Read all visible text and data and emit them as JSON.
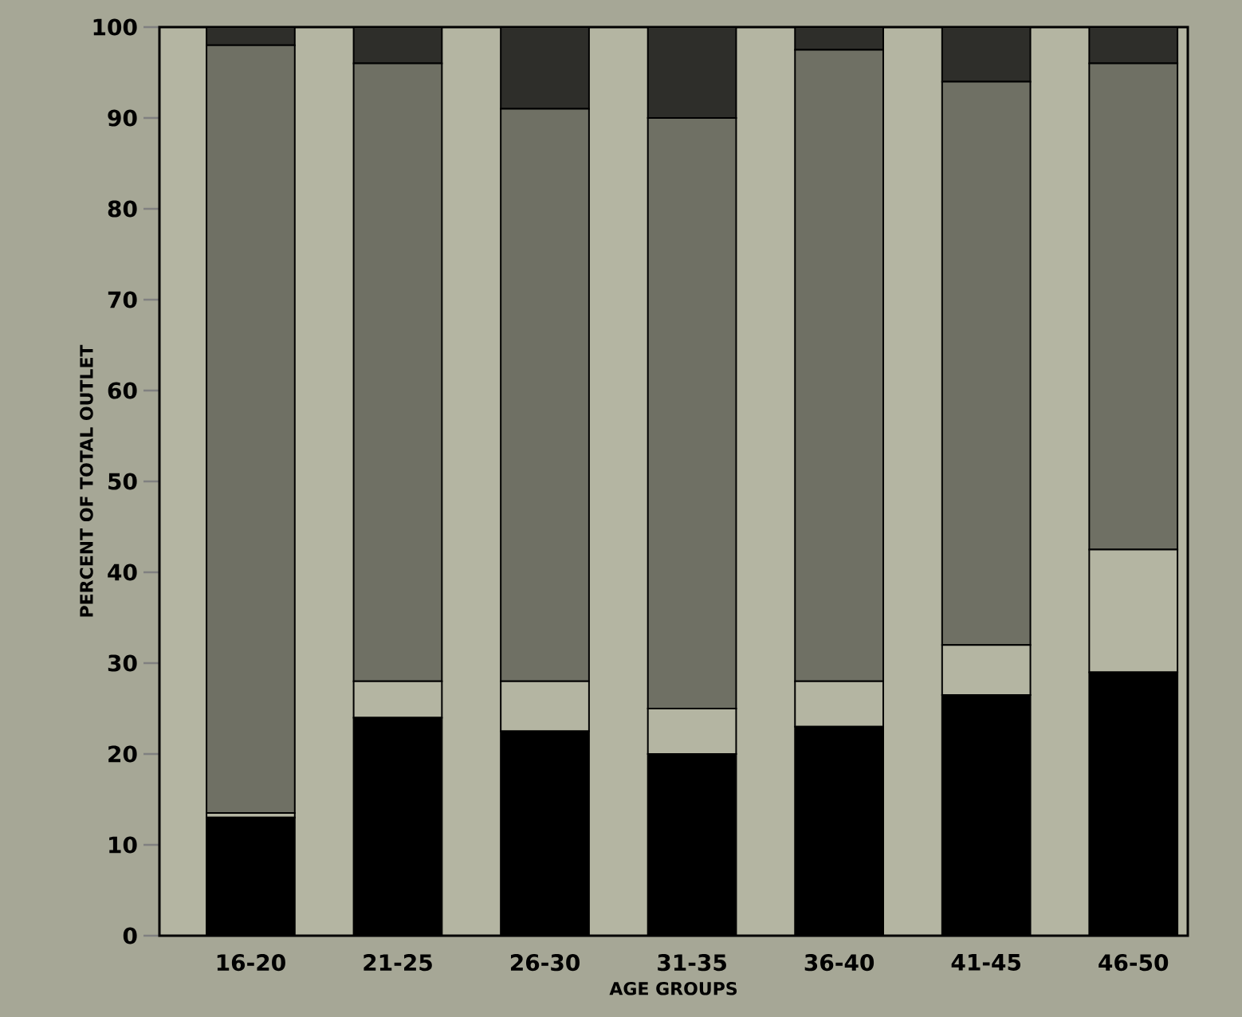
{
  "chart_data": {
    "type": "bar",
    "stacked": true,
    "xlabel": "AGE GROUPS",
    "ylabel": "PERCENT OF TOTAL OUTLET",
    "categories": [
      "16-20",
      "21-25",
      "26-30",
      "31-35",
      "36-40",
      "41-45",
      "46-50"
    ],
    "series": [
      {
        "color": "#000000",
        "values": [
          13,
          24,
          22.5,
          20,
          23,
          26.5,
          29
        ]
      },
      {
        "color": "#b4b5a2",
        "values": [
          0.5,
          4,
          5.5,
          5,
          5,
          5.5,
          13.5
        ]
      },
      {
        "color": "#6f7064",
        "values": [
          84.5,
          68,
          63,
          65,
          69.5,
          62,
          53.5
        ]
      },
      {
        "color": "#2e2e2a",
        "values": [
          2,
          4,
          9,
          10,
          2.5,
          6,
          4
        ]
      }
    ],
    "ylim": [
      0,
      100
    ],
    "yticks": [
      0,
      10,
      20,
      30,
      40,
      50,
      60,
      70,
      80,
      90,
      100
    ],
    "grid": false
  }
}
